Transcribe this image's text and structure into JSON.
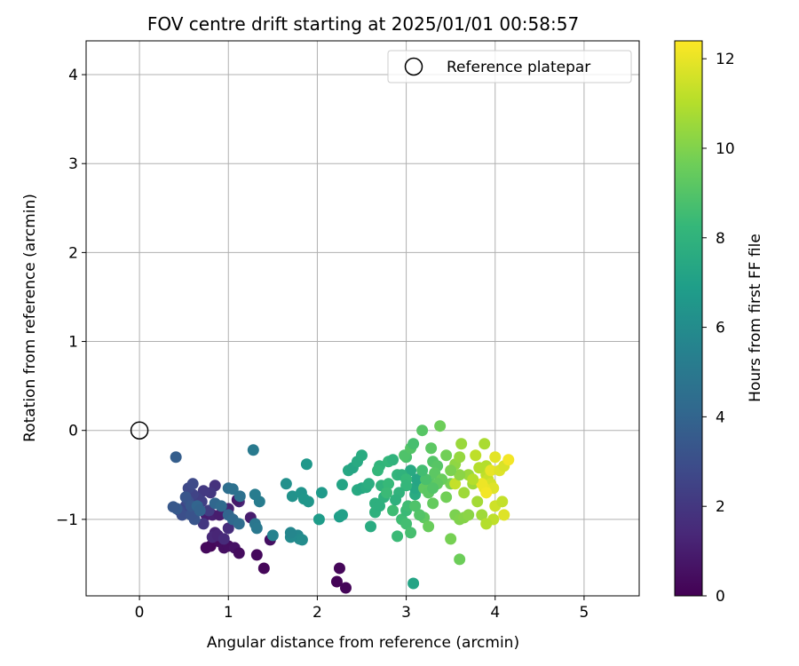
{
  "chart_data": {
    "type": "scatter",
    "title": "FOV centre drift starting at 2025/01/01 00:58:57",
    "xlabel": "Angular distance from reference (arcmin)",
    "ylabel": "Rotation from reference (arcmin)",
    "xlim": [
      -0.6,
      5.62
    ],
    "ylim": [
      -1.86,
      4.38
    ],
    "xticks": [
      0,
      1,
      2,
      3,
      4,
      5
    ],
    "xtick_labels": [
      "0",
      "1",
      "2",
      "3",
      "4",
      "5"
    ],
    "yticks": [
      -1,
      0,
      1,
      2,
      3,
      4
    ],
    "ytick_labels": [
      "−1",
      "0",
      "1",
      "2",
      "3",
      "4"
    ],
    "grid": true,
    "legend": {
      "placement": "top-right",
      "entries": [
        {
          "label": "Reference platepar",
          "marker": "open-circle",
          "color": "#000000"
        }
      ]
    },
    "reference_point": {
      "x": 0,
      "y": 0
    },
    "colorbar": {
      "label": "Hours from first FF file",
      "colormap": "viridis",
      "range": [
        0,
        12.4
      ],
      "ticks": [
        0,
        2,
        4,
        6,
        8,
        10,
        12
      ],
      "tick_labels": [
        "0",
        "2",
        "4",
        "6",
        "8",
        "10",
        "12"
      ]
    },
    "colormap_stops": [
      "#440154",
      "#482878",
      "#3e4989",
      "#31688e",
      "#26828e",
      "#1f9e89",
      "#35b779",
      "#6ece58",
      "#b5de2b",
      "#fde725"
    ],
    "series": [
      {
        "points": [
          [
            0.8,
            -1.3,
            0.2
          ],
          [
            0.75,
            -1.32,
            0.3
          ],
          [
            0.9,
            -1.25,
            0.4
          ],
          [
            0.95,
            -1.32,
            0.5
          ],
          [
            1.0,
            -1.3,
            0.5
          ],
          [
            1.07,
            -1.32,
            0.6
          ],
          [
            1.12,
            -1.38,
            0.4
          ],
          [
            1.32,
            -1.4,
            0.3
          ],
          [
            1.4,
            -1.55,
            0.2
          ],
          [
            1.47,
            -1.23,
            0.5
          ],
          [
            2.25,
            -1.55,
            0.2
          ],
          [
            2.22,
            -1.7,
            0.1
          ],
          [
            2.32,
            -1.77,
            0.15
          ],
          [
            0.65,
            -0.9,
            0.9
          ],
          [
            0.75,
            -0.95,
            1.0
          ],
          [
            0.82,
            -0.95,
            1.1
          ],
          [
            0.9,
            -0.95,
            1.0
          ],
          [
            1.0,
            -0.88,
            1.2
          ],
          [
            1.12,
            -0.8,
            1.3
          ],
          [
            1.1,
            -0.78,
            0.8
          ],
          [
            1.25,
            -0.98,
            1.0
          ],
          [
            0.85,
            -1.15,
            1.2
          ],
          [
            0.82,
            -1.2,
            1.4
          ],
          [
            0.88,
            -1.18,
            1.3
          ],
          [
            0.95,
            -1.22,
            1.5
          ],
          [
            1.0,
            -1.1,
            1.6
          ],
          [
            0.85,
            -0.62,
            1.8
          ],
          [
            0.8,
            -0.7,
            2.0
          ],
          [
            0.72,
            -0.68,
            2.1
          ],
          [
            0.78,
            -0.9,
            2.2
          ],
          [
            0.72,
            -1.05,
            2.0
          ],
          [
            0.7,
            -0.8,
            2.4
          ],
          [
            0.65,
            -0.76,
            2.3
          ],
          [
            0.6,
            -0.72,
            2.5
          ],
          [
            0.55,
            -0.65,
            2.7
          ],
          [
            0.6,
            -0.6,
            2.8
          ],
          [
            0.52,
            -0.85,
            2.6
          ],
          [
            0.45,
            -0.9,
            2.9
          ],
          [
            0.48,
            -0.95,
            3.0
          ],
          [
            0.55,
            -0.8,
            3.0
          ],
          [
            0.62,
            -1.0,
            3.3
          ],
          [
            0.58,
            -0.95,
            3.2
          ],
          [
            0.42,
            -0.88,
            3.5
          ],
          [
            0.38,
            -0.86,
            3.4
          ],
          [
            0.41,
            -0.3,
            3.7
          ],
          [
            0.52,
            -0.75,
            3.3
          ],
          [
            0.58,
            -0.85,
            3.4
          ],
          [
            0.65,
            -0.85,
            4.0
          ],
          [
            0.68,
            -0.9,
            3.9
          ],
          [
            0.85,
            -0.82,
            4.1
          ],
          [
            0.92,
            -0.85,
            4.3
          ],
          [
            1.0,
            -0.95,
            4.0
          ],
          [
            1.05,
            -1.0,
            4.2
          ],
          [
            1.12,
            -1.05,
            4.4
          ],
          [
            1.0,
            -0.65,
            4.5
          ],
          [
            1.05,
            -0.66,
            4.6
          ],
          [
            1.13,
            -0.74,
            4.6
          ],
          [
            1.3,
            -1.05,
            4.9
          ],
          [
            1.32,
            -1.1,
            5.0
          ],
          [
            1.28,
            -0.22,
            5.1
          ],
          [
            1.35,
            -0.8,
            5.2
          ],
          [
            1.3,
            -0.72,
            5.2
          ],
          [
            1.5,
            -1.18,
            5.5
          ],
          [
            1.78,
            -1.18,
            5.8
          ],
          [
            1.8,
            -1.22,
            5.9
          ],
          [
            1.83,
            -1.23,
            6.0
          ],
          [
            1.7,
            -1.2,
            5.9
          ],
          [
            1.7,
            -1.15,
            5.7
          ],
          [
            1.65,
            -0.6,
            6.2
          ],
          [
            1.72,
            -0.74,
            6.3
          ],
          [
            1.82,
            -0.7,
            6.4
          ],
          [
            1.85,
            -0.77,
            6.5
          ],
          [
            1.9,
            -0.8,
            6.5
          ],
          [
            1.88,
            -0.38,
            6.6
          ],
          [
            2.05,
            -0.7,
            6.7
          ],
          [
            2.02,
            -1.0,
            6.8
          ],
          [
            2.25,
            -0.97,
            6.9
          ],
          [
            2.28,
            -0.95,
            7.0
          ],
          [
            2.28,
            -0.61,
            7.2
          ],
          [
            2.35,
            -0.45,
            7.4
          ],
          [
            2.4,
            -0.42,
            7.3
          ],
          [
            2.45,
            -0.35,
            7.5
          ],
          [
            2.5,
            -0.28,
            7.6
          ],
          [
            2.45,
            -0.67,
            7.5
          ],
          [
            2.5,
            -0.65,
            7.4
          ],
          [
            2.55,
            -0.64,
            7.6
          ],
          [
            2.58,
            -0.6,
            7.7
          ],
          [
            2.6,
            -1.08,
            7.6
          ],
          [
            2.65,
            -0.82,
            7.8
          ],
          [
            2.65,
            -0.92,
            7.9
          ],
          [
            2.7,
            -0.85,
            7.8
          ],
          [
            2.75,
            -0.75,
            7.9
          ],
          [
            2.72,
            -0.62,
            8.0
          ],
          [
            2.7,
            -0.4,
            8.1
          ],
          [
            2.68,
            -0.45,
            8.2
          ],
          [
            2.8,
            -0.35,
            8.2
          ],
          [
            2.85,
            -0.33,
            8.0
          ],
          [
            2.9,
            -0.5,
            8.1
          ],
          [
            2.8,
            -0.6,
            8.3
          ],
          [
            2.78,
            -0.7,
            8.4
          ],
          [
            2.85,
            -0.9,
            8.5
          ],
          [
            2.9,
            -1.19,
            8.4
          ],
          [
            2.95,
            -1.0,
            8.5
          ],
          [
            3.0,
            -1.05,
            8.6
          ],
          [
            3.05,
            -1.15,
            8.7
          ],
          [
            3.08,
            -1.72,
            7.2
          ],
          [
            3.0,
            -0.9,
            8.4
          ],
          [
            3.02,
            -0.85,
            8.5
          ],
          [
            3.1,
            -0.72,
            7.6
          ],
          [
            3.1,
            -0.65,
            7.4
          ],
          [
            3.12,
            -0.55,
            7.3
          ],
          [
            3.05,
            -0.45,
            7.5
          ],
          [
            2.95,
            -0.5,
            8.0
          ],
          [
            3.0,
            -0.55,
            8.3
          ],
          [
            3.0,
            -0.3,
            8.8
          ],
          [
            2.98,
            -0.28,
            8.9
          ],
          [
            3.05,
            -0.2,
            9.0
          ],
          [
            3.08,
            -0.15,
            8.7
          ],
          [
            3.18,
            0.0,
            9.1
          ],
          [
            3.28,
            -0.2,
            9.2
          ],
          [
            3.3,
            -0.35,
            9.0
          ],
          [
            3.35,
            -0.4,
            9.1
          ],
          [
            3.32,
            -0.48,
            9.2
          ],
          [
            3.28,
            -0.6,
            9.1
          ],
          [
            3.2,
            -0.65,
            9.3
          ],
          [
            3.25,
            -0.7,
            9.2
          ],
          [
            3.3,
            -0.82,
            9.4
          ],
          [
            3.2,
            -0.98,
            9.3
          ],
          [
            3.25,
            -1.08,
            9.5
          ],
          [
            3.15,
            -0.95,
            9.0
          ],
          [
            3.1,
            -0.85,
            8.9
          ],
          [
            3.38,
            0.05,
            9.6
          ],
          [
            3.45,
            -0.28,
            9.7
          ],
          [
            3.5,
            -0.6,
            9.8
          ],
          [
            3.45,
            -0.75,
            9.7
          ],
          [
            3.55,
            -0.95,
            9.9
          ],
          [
            3.5,
            -1.22,
            9.8
          ],
          [
            3.6,
            -1.45,
            9.6
          ],
          [
            3.6,
            -1.0,
            10.0
          ],
          [
            3.65,
            -0.98,
            10.1
          ],
          [
            3.7,
            -0.95,
            10.2
          ],
          [
            3.55,
            -0.38,
            10.3
          ],
          [
            3.6,
            -0.3,
            10.4
          ],
          [
            3.62,
            -0.15,
            10.5
          ],
          [
            3.7,
            -0.5,
            10.5
          ],
          [
            3.75,
            -0.6,
            10.6
          ],
          [
            3.8,
            -0.8,
            10.7
          ],
          [
            3.85,
            -0.95,
            10.6
          ],
          [
            3.88,
            -0.15,
            10.8
          ],
          [
            3.9,
            -0.4,
            11.0
          ],
          [
            3.9,
            -0.5,
            11.2
          ],
          [
            3.92,
            -0.55,
            11.4
          ],
          [
            3.95,
            -0.6,
            11.6
          ],
          [
            3.98,
            -0.65,
            11.8
          ],
          [
            3.88,
            -0.65,
            12.0
          ],
          [
            3.85,
            -0.6,
            12.1
          ],
          [
            3.9,
            -0.7,
            12.2
          ],
          [
            3.95,
            -0.45,
            12.0
          ],
          [
            4.0,
            -0.3,
            11.9
          ],
          [
            4.05,
            -0.45,
            11.8
          ],
          [
            4.1,
            -0.4,
            11.7
          ],
          [
            4.15,
            -0.33,
            12.2
          ],
          [
            4.0,
            -0.85,
            11.5
          ],
          [
            4.08,
            -0.8,
            11.3
          ],
          [
            4.1,
            -0.95,
            11.8
          ],
          [
            3.98,
            -1.0,
            11.2
          ],
          [
            3.9,
            -1.05,
            11.0
          ],
          [
            3.82,
            -0.42,
            11.0
          ],
          [
            3.78,
            -0.28,
            11.2
          ],
          [
            3.75,
            -0.55,
            11.0
          ],
          [
            3.65,
            -0.7,
            10.6
          ],
          [
            3.55,
            -0.6,
            11.3
          ],
          [
            3.6,
            -0.5,
            10.2
          ],
          [
            3.5,
            -0.45,
            9.9
          ],
          [
            3.4,
            -0.55,
            9.5
          ],
          [
            3.35,
            -0.6,
            9.3
          ],
          [
            3.3,
            -0.65,
            9.0
          ],
          [
            3.22,
            -0.55,
            8.8
          ],
          [
            3.18,
            -0.45,
            8.6
          ],
          [
            3.0,
            -0.62,
            8.2
          ],
          [
            2.92,
            -0.7,
            8.0
          ],
          [
            2.88,
            -0.78,
            7.9
          ]
        ]
      }
    ]
  }
}
